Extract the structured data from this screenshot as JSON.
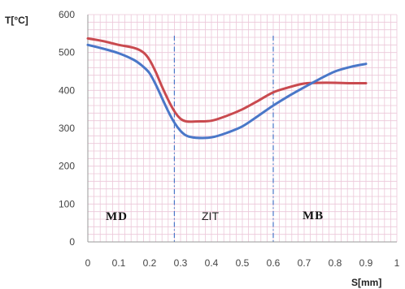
{
  "chart_data": {
    "type": "line",
    "ylabel": "T[°C]",
    "xlabel": "S[mm]",
    "xlim": [
      0,
      1
    ],
    "ylim": [
      0,
      600
    ],
    "x_ticks": [
      "0",
      "0.1",
      "0.2",
      "0.3",
      "0.4",
      "0.5",
      "0.6",
      "0.7",
      "0.8",
      "0.9",
      "1"
    ],
    "y_ticks": [
      "0",
      "100",
      "200",
      "300",
      "400",
      "500",
      "600"
    ],
    "grid": true,
    "series": [
      {
        "color": "#c94a4f",
        "x": [
          0,
          0.05,
          0.1,
          0.15,
          0.18,
          0.2,
          0.22,
          0.24,
          0.26,
          0.28,
          0.3,
          0.32,
          0.35,
          0.4,
          0.45,
          0.5,
          0.55,
          0.6,
          0.65,
          0.7,
          0.75,
          0.8,
          0.85,
          0.9
        ],
        "values": [
          537,
          530,
          520,
          512,
          500,
          480,
          448,
          410,
          375,
          345,
          325,
          318,
          318,
          320,
          333,
          350,
          372,
          395,
          408,
          418,
          420,
          420,
          419,
          419
        ]
      },
      {
        "color": "#4a77c8",
        "x": [
          0,
          0.05,
          0.1,
          0.15,
          0.18,
          0.2,
          0.22,
          0.24,
          0.26,
          0.28,
          0.3,
          0.32,
          0.35,
          0.4,
          0.45,
          0.5,
          0.55,
          0.6,
          0.65,
          0.7,
          0.75,
          0.8,
          0.85,
          0.9
        ],
        "values": [
          520,
          510,
          498,
          480,
          462,
          445,
          415,
          380,
          345,
          315,
          293,
          280,
          275,
          276,
          288,
          305,
          332,
          360,
          385,
          408,
          430,
          450,
          462,
          470
        ]
      }
    ],
    "dividers": [
      0.28,
      0.6
    ],
    "regions": [
      "MD",
      "ZIT",
      "MB"
    ]
  }
}
